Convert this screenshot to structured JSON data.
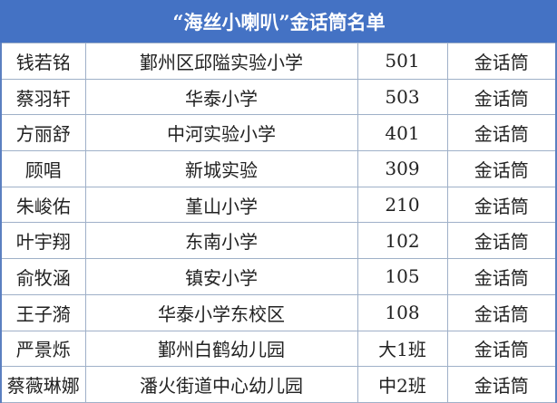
{
  "title": "“海丝小喇叭”金话筒名单",
  "colors": {
    "header_bg": "#4472c4",
    "header_text": "#ffffff",
    "border": "#9fb0c8"
  },
  "rows": [
    [
      "钱若铭",
      "鄞州区邱隘实验小学",
      "501",
      "金话筒"
    ],
    [
      "蔡羽轩",
      "华泰小学",
      "503",
      "金话筒"
    ],
    [
      "方丽舒",
      "中河实验小学",
      "401",
      "金话筒"
    ],
    [
      "顾唱",
      "新城实验",
      "309",
      "金话筒"
    ],
    [
      "朱峻佑",
      "堇山小学",
      "210",
      "金话筒"
    ],
    [
      "叶宇翔",
      "东南小学",
      "102",
      "金话筒"
    ],
    [
      "俞牧涵",
      "镇安小学",
      "105",
      "金话筒"
    ],
    [
      "王子漪",
      "华泰小学东校区",
      "108",
      "金话筒"
    ],
    [
      "严景烁",
      "鄞州白鹤幼儿园",
      "大1班",
      "金话筒"
    ],
    [
      "蔡薇琳娜",
      "潘火街道中心幼儿园",
      "中2班",
      "金话筒"
    ]
  ]
}
